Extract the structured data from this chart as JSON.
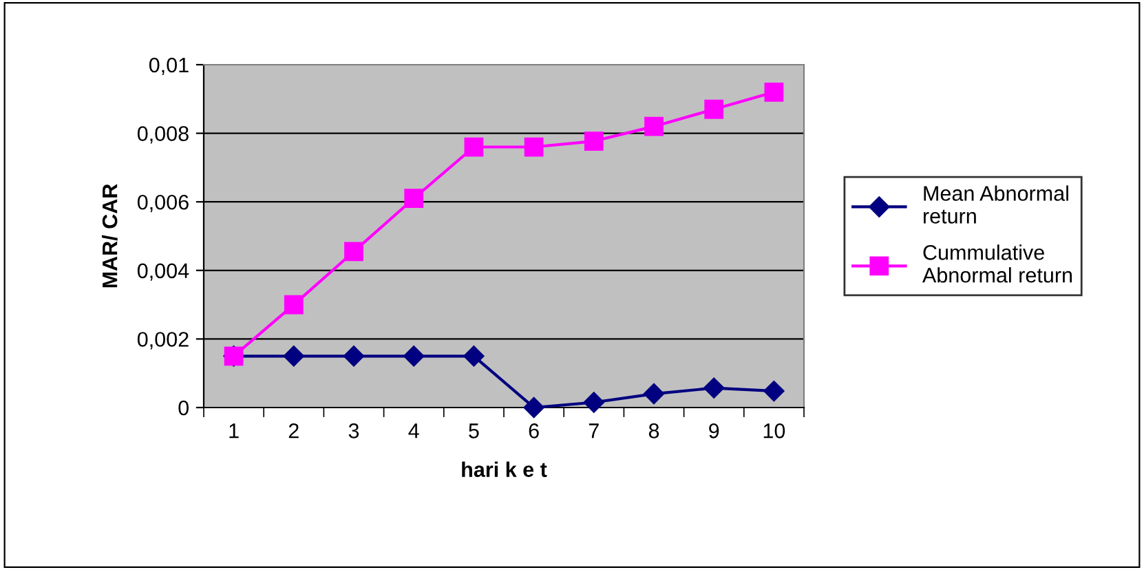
{
  "chart_data": {
    "type": "line",
    "xlabel": "hari k e t",
    "ylabel": "MAR/ CAR",
    "categories": [
      "1",
      "2",
      "3",
      "4",
      "5",
      "6",
      "7",
      "8",
      "9",
      "10"
    ],
    "series": [
      {
        "name": "Mean Abnormal return",
        "color": "#000080",
        "marker": "diamond",
        "values": [
          0.0015,
          0.0015,
          0.0015,
          0.0015,
          0.0015,
          0,
          0.00015,
          0.0004,
          0.00057,
          0.00048
        ]
      },
      {
        "name": "Cummulative Abnormal return",
        "color": "#ff00ff",
        "marker": "square",
        "values": [
          0.0015,
          0.003,
          0.00455,
          0.0061,
          0.0076,
          0.0076,
          0.00777,
          0.0082,
          0.0087,
          0.0092
        ]
      }
    ],
    "ylim": [
      0,
      0.01
    ],
    "yticks": [
      {
        "value": 0,
        "label": "0"
      },
      {
        "value": 0.002,
        "label": "0,002"
      },
      {
        "value": 0.004,
        "label": "0,004"
      },
      {
        "value": 0.006,
        "label": "0,006"
      },
      {
        "value": 0.008,
        "label": "0,008"
      },
      {
        "value": 0.01,
        "label": "0,01"
      }
    ],
    "grid": "y",
    "legend": "right"
  }
}
